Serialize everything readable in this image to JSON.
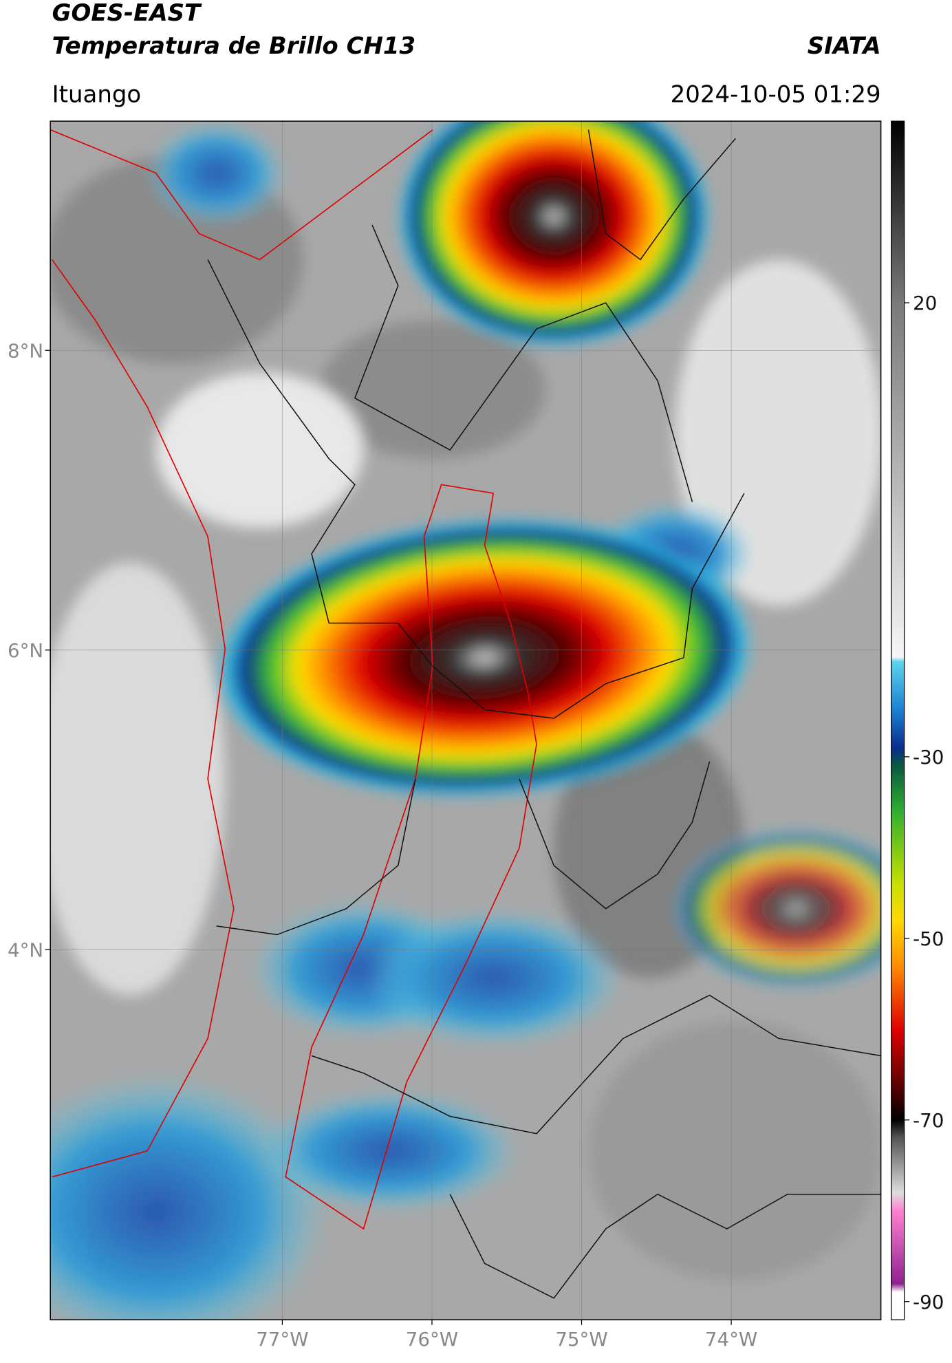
{
  "header": {
    "title": "GOES-EAST",
    "subtitle": "Temperatura de Brillo CH13",
    "agency": "SIATA",
    "location": "Ituango",
    "timestamp": "2024-10-05 01:29"
  },
  "map": {
    "xlim": [
      -78.55,
      -73.0
    ],
    "ylim": [
      1.53,
      9.53
    ],
    "xticks": [
      {
        "value": -77,
        "label": "77°W"
      },
      {
        "value": -76,
        "label": "76°W"
      },
      {
        "value": -75,
        "label": "75°W"
      },
      {
        "value": -74,
        "label": "74°W"
      }
    ],
    "yticks": [
      {
        "value": 8,
        "label": "8°N"
      },
      {
        "value": 6,
        "label": "6°N"
      },
      {
        "value": 4,
        "label": "4°N"
      }
    ]
  },
  "colorbar": {
    "lim": [
      -92,
      40
    ],
    "ticks": [
      20,
      -30,
      -50,
      -70,
      -90
    ]
  }
}
